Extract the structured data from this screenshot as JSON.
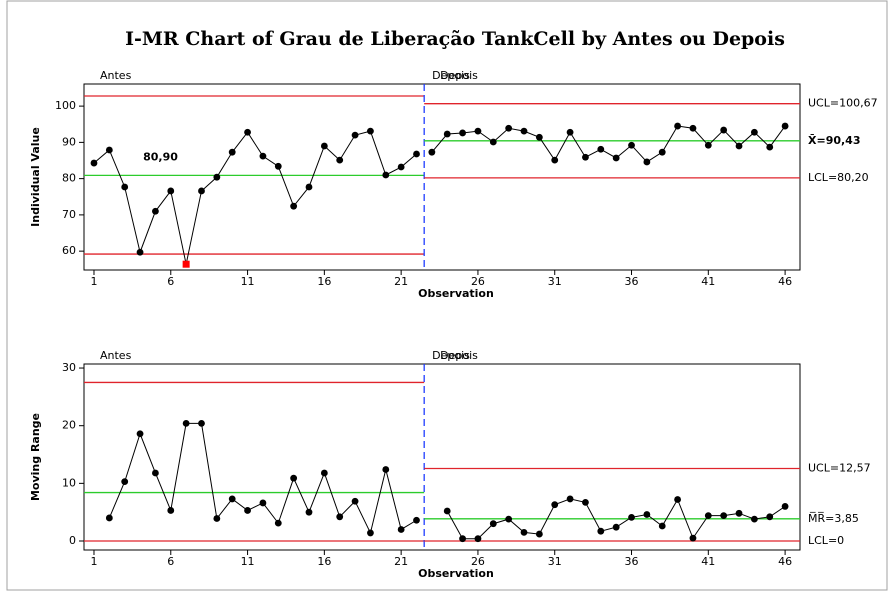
{
  "title": "I-MR Chart of Grau de Liberação TankCell by Antes ou Depois",
  "chart_data": [
    {
      "type": "line",
      "ylabel": "Individual Value",
      "xlabel": "Observation",
      "xlim": [
        0.35,
        46.97
      ],
      "xticks": [
        1,
        6,
        11,
        16,
        21,
        26,
        31,
        36,
        41,
        46
      ],
      "ylim": [
        54.8,
        106.1
      ],
      "yticks": [
        60,
        70,
        80,
        90,
        100
      ],
      "x": [
        1,
        2,
        3,
        4,
        5,
        6,
        7,
        8,
        9,
        10,
        11,
        12,
        13,
        14,
        15,
        16,
        17,
        18,
        19,
        20,
        21,
        22,
        23,
        24,
        25,
        26,
        27,
        28,
        29,
        30,
        31,
        32,
        33,
        34,
        35,
        36,
        37,
        38,
        39,
        40,
        41,
        42,
        43,
        44,
        45,
        46
      ],
      "values": [
        84.3,
        87.9,
        77.7,
        59.7,
        71.0,
        76.6,
        56.4,
        76.6,
        80.4,
        87.3,
        92.8,
        86.2,
        83.4,
        72.4,
        77.7,
        89.0,
        85.1,
        92.0,
        93.1,
        81.0,
        83.2,
        86.8,
        87.3,
        92.3,
        92.6,
        93.1,
        90.1,
        93.9,
        93.1,
        91.4,
        85.1,
        92.8,
        85.9,
        88.1,
        85.7,
        89.2,
        84.6,
        87.3,
        94.5,
        93.9,
        89.2,
        93.4,
        89.0,
        92.8,
        88.7,
        94.5
      ],
      "color": "#000000",
      "flagged": [
        7
      ],
      "flag_color": "#ff0000",
      "limit_color": "#e0242c",
      "center_color": "#2ccc2c",
      "divider_color": "#1f3cff",
      "phases": [
        {
          "name": "Antes",
          "start": 1,
          "end": 22,
          "ucl": 102.8,
          "cl": 80.9,
          "lcl": 59.2,
          "cl_label": "80,90"
        },
        {
          "name": "Depois",
          "start": 23,
          "end": 46,
          "ucl": 100.67,
          "cl": 90.43,
          "lcl": 80.2,
          "ucl_label": "UCL=100,67",
          "cl_label": "X̄=90,43",
          "lcl_label": "LCL=80,20"
        }
      ]
    },
    {
      "type": "line",
      "ylabel": "Moving Range",
      "xlabel": "Observation",
      "xlim": [
        0.35,
        46.97
      ],
      "xticks": [
        1,
        6,
        11,
        16,
        21,
        26,
        31,
        36,
        41,
        46
      ],
      "ylim": [
        -1.56,
        30.7
      ],
      "yticks": [
        0,
        10,
        20,
        30
      ],
      "x": [
        1,
        2,
        3,
        4,
        5,
        6,
        7,
        8,
        9,
        10,
        11,
        12,
        13,
        14,
        15,
        16,
        17,
        18,
        19,
        20,
        21,
        22,
        23,
        24,
        25,
        26,
        27,
        28,
        29,
        30,
        31,
        32,
        33,
        34,
        35,
        36,
        37,
        38,
        39,
        40,
        41,
        42,
        43,
        44,
        45,
        46
      ],
      "values": [
        null,
        4.0,
        10.3,
        18.6,
        11.8,
        5.3,
        20.4,
        20.4,
        3.9,
        7.3,
        5.3,
        6.6,
        3.1,
        10.9,
        5.0,
        11.8,
        4.2,
        6.9,
        1.4,
        12.4,
        2.0,
        3.6,
        null,
        5.2,
        0.4,
        0.4,
        3.0,
        3.8,
        1.5,
        1.2,
        6.3,
        7.3,
        6.7,
        1.7,
        2.4,
        4.1,
        4.6,
        2.6,
        7.2,
        0.5,
        4.4,
        4.4,
        4.8,
        3.8,
        4.2,
        6.0
      ],
      "color": "#000000",
      "flagged": [],
      "flag_color": "#ff0000",
      "limit_color": "#e0242c",
      "center_color": "#2ccc2c",
      "divider_color": "#1f3cff",
      "phases": [
        {
          "name": "Antes",
          "start": 1,
          "end": 22,
          "ucl": 27.5,
          "cl": 8.4,
          "lcl": 0
        },
        {
          "name": "Depois",
          "start": 23,
          "end": 46,
          "ucl": 12.57,
          "cl": 3.85,
          "lcl": 0,
          "ucl_label": "UCL=12,57",
          "cl_label": "M̅R̅=3,85",
          "lcl_label": "LCL=0"
        }
      ]
    }
  ]
}
